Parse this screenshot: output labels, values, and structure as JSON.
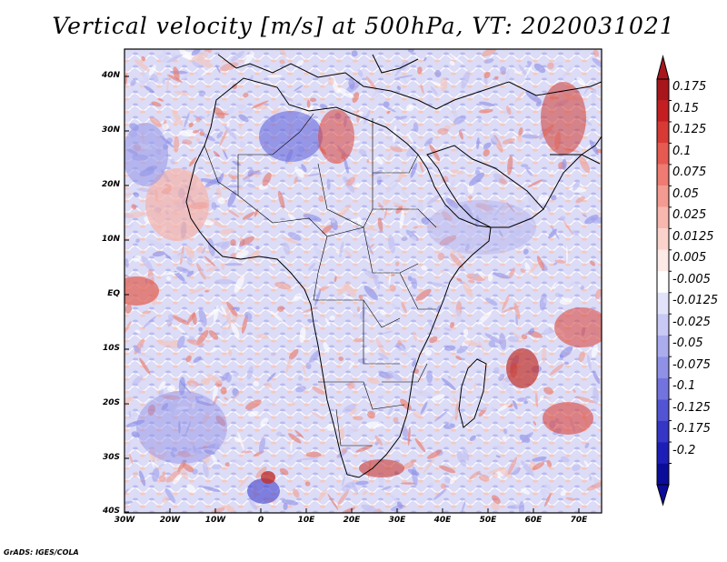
{
  "title": "Vertical velocity [m/s] at 500hPa, VT: 2020031021",
  "credit": "GrADS: IGES/COLA",
  "map": {
    "lon_range": [
      -30,
      76
    ],
    "lat_range": [
      -40,
      44
    ],
    "lat_labels": [
      "40N",
      "30N",
      "20N",
      "10N",
      "EQ",
      "10S",
      "20S",
      "30S",
      "40S"
    ],
    "lon_labels": [
      "30W",
      "20W",
      "10W",
      "0",
      "10E",
      "20E",
      "30E",
      "40E",
      "50E",
      "60E",
      "70E"
    ]
  },
  "colorbar": {
    "levels": [
      "0.175",
      "0.15",
      "0.125",
      "0.1",
      "0.075",
      "0.05",
      "0.025",
      "0.0125",
      "0.005",
      "-0.005",
      "-0.0125",
      "-0.025",
      "-0.05",
      "-0.075",
      "-0.1",
      "-0.125",
      "-0.175",
      "-0.2"
    ],
    "colors": [
      "#a8161c",
      "#c41e22",
      "#d73a35",
      "#e65a52",
      "#ef7b72",
      "#f49a90",
      "#f8b7ae",
      "#fbd2cb",
      "#fde9e5",
      "#ffffff",
      "#e2e3fa",
      "#c8c9f4",
      "#abaced",
      "#8f90e6",
      "#7273de",
      "#5354d4",
      "#3535c6",
      "#1d1db8",
      "#0c0c9a"
    ],
    "top_color": "#a8161c",
    "bottom_color": "#0c0c9a"
  }
}
